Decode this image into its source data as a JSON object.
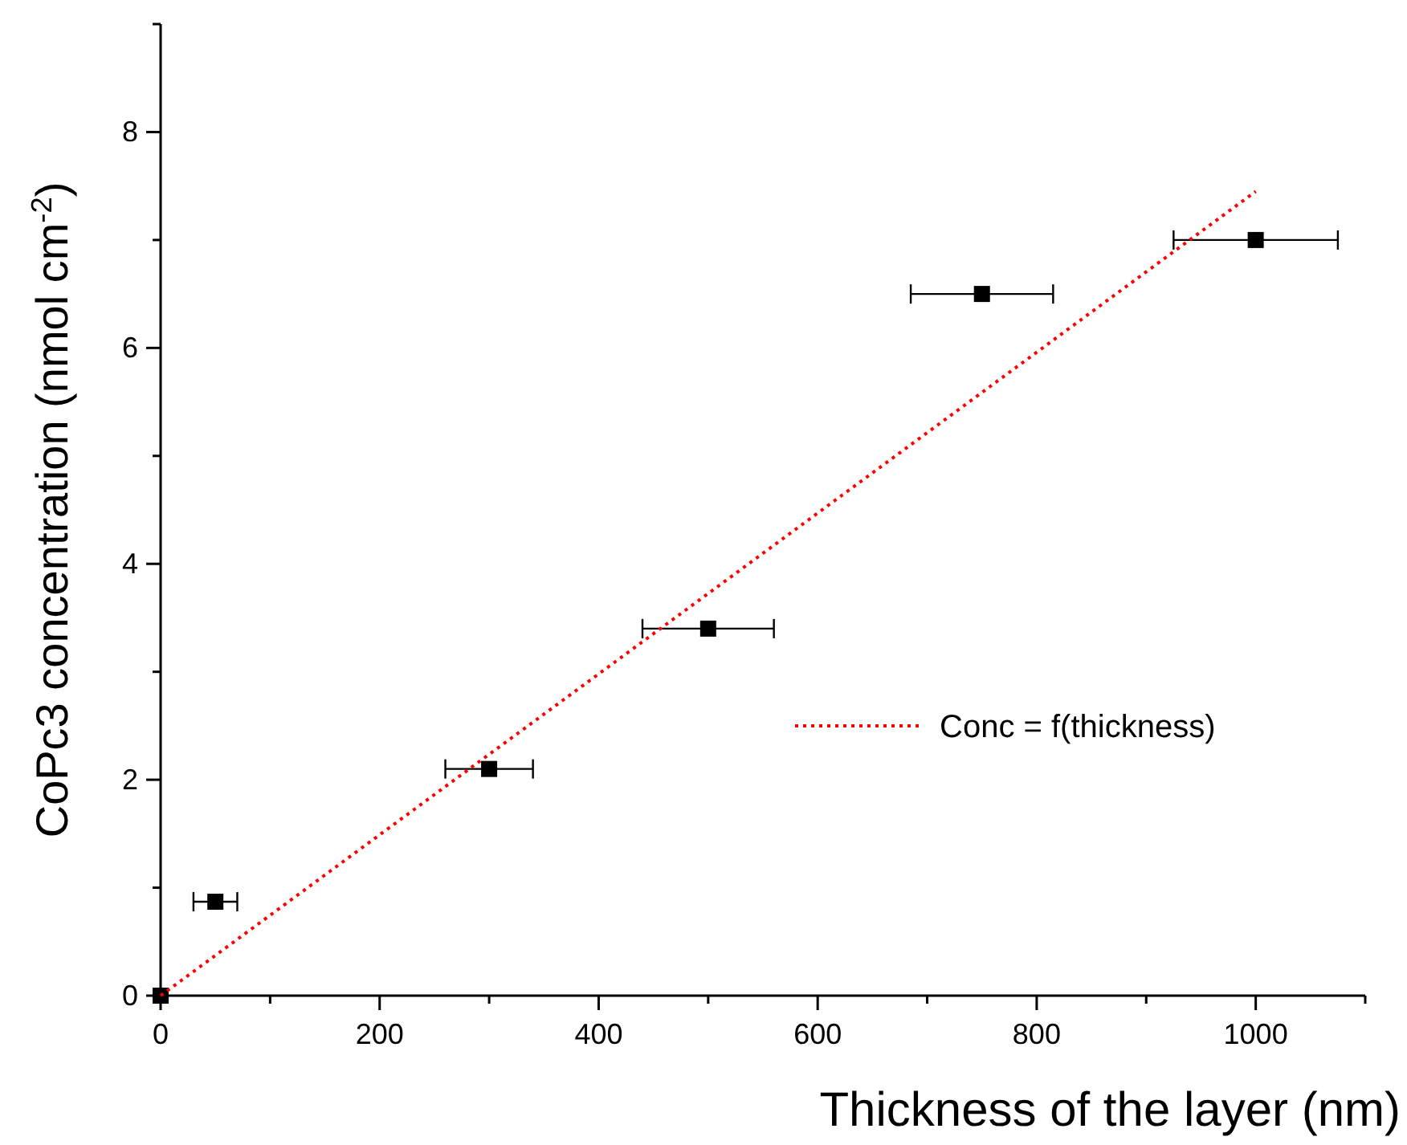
{
  "chart_data": {
    "type": "scatter",
    "xlabel": "Thickness of the layer  (nm)",
    "ylabel": "CoPc3 concentration (nmol cm$^{-2}$)",
    "xlim": [
      0,
      1100
    ],
    "ylim": [
      0,
      9
    ],
    "xticks": [
      0,
      {
        "value": 100,
        "label": null
      },
      200,
      {
        "value": 300,
        "label": null
      },
      400,
      {
        "value": 500,
        "label": null
      },
      600,
      {
        "value": 700,
        "label": null
      },
      800,
      {
        "value": 900,
        "label": null
      },
      1000,
      {
        "value": 1100,
        "label": null
      }
    ],
    "yticks": [
      0,
      {
        "value": 1,
        "label": null
      },
      2,
      {
        "value": 3,
        "label": null
      },
      4,
      {
        "value": 5,
        "label": null
      },
      6,
      {
        "value": 7,
        "label": null
      },
      8,
      {
        "value": 9,
        "label": null
      }
    ],
    "legend": "right",
    "grid": false,
    "series": [
      {
        "color": "#000000",
        "marker": "square",
        "x": [
          0,
          50,
          300,
          500,
          750,
          1000
        ],
        "values": [
          0,
          0.87,
          2.1,
          3.4,
          6.5,
          7.0
        ],
        "xerrors": [
          null,
          20,
          40,
          60,
          65,
          75
        ]
      },
      {
        "type": "line",
        "name": "Conc = f(thickness)",
        "color": "#ff0000",
        "line_style": "dotted",
        "marker": "none",
        "x": [
          0,
          1000
        ],
        "values": [
          0,
          7.45
        ]
      }
    ]
  }
}
